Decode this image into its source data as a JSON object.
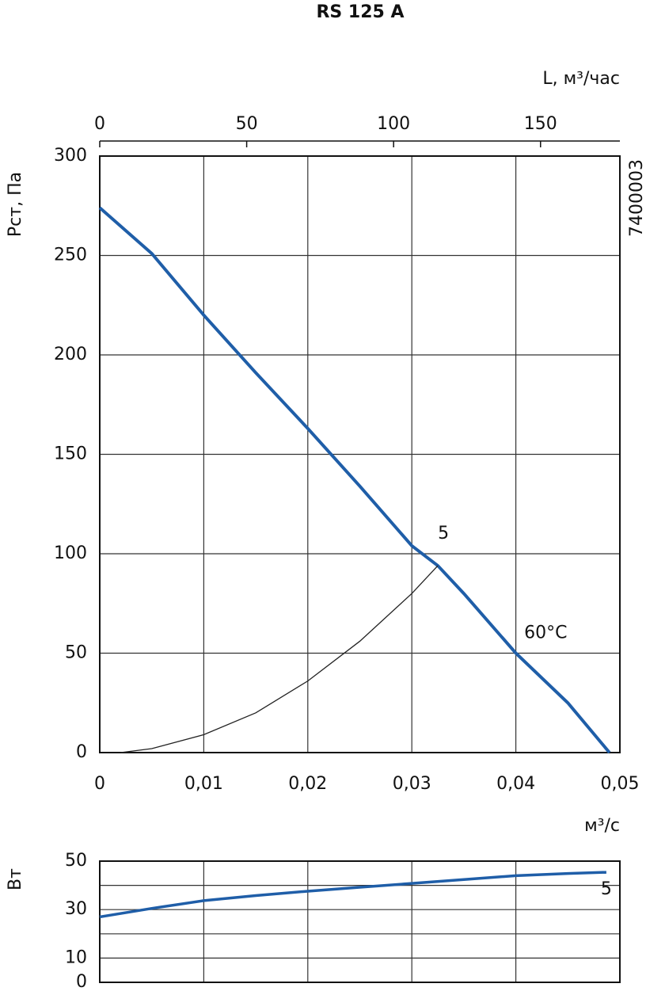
{
  "chart_data": [
    {
      "type": "line",
      "title": "RS 125 A",
      "side_code": "7400003",
      "ylabel": "Pст, Па",
      "xlabel": "м³/с",
      "x2label": "L, м³/час",
      "xlim": [
        0,
        0.05
      ],
      "xticks": [
        0,
        {
          "value": 0.01,
          "label": "0,01"
        },
        {
          "value": 0.02,
          "label": "0,02"
        },
        {
          "value": 0.03,
          "label": "0,03"
        },
        {
          "value": 0.04,
          "label": "0,04"
        },
        {
          "value": 0.05,
          "label": "0,05"
        }
      ],
      "x2lim": [
        0,
        177
      ],
      "x2ticks": [
        0,
        50,
        100,
        150
      ],
      "ylim": [
        0,
        300
      ],
      "yticks": [
        0,
        50,
        100,
        150,
        200,
        250,
        300
      ],
      "grid": true,
      "series": [
        {
          "color": "#1f5ea8",
          "width": 4,
          "x": [
            0,
            0.005,
            0.01,
            0.015,
            0.02,
            0.025,
            0.03,
            0.0325,
            0.035,
            0.04,
            0.045,
            0.049
          ],
          "values": [
            274,
            251,
            220,
            191,
            163,
            134,
            104,
            94,
            80,
            50,
            25,
            0
          ]
        },
        {
          "color": "#222222",
          "width": 1.3,
          "x": [
            0.002,
            0.005,
            0.01,
            0.015,
            0.02,
            0.025,
            0.03,
            0.0325
          ],
          "values": [
            0,
            2,
            9,
            20,
            36,
            56,
            80,
            94
          ]
        }
      ],
      "annotations": [
        {
          "text": "5",
          "x": 0.0322,
          "y": 106
        },
        {
          "text": "60°C",
          "x": 0.0405,
          "y": 56
        }
      ]
    },
    {
      "type": "line",
      "ylabel": "Вт",
      "xlim": [
        0,
        0.05
      ],
      "ylim": [
        0,
        50
      ],
      "yticks": [
        0,
        10,
        30,
        50
      ],
      "grid_values": [
        0,
        10,
        20,
        30,
        40,
        50
      ],
      "grid": true,
      "series": [
        {
          "color": "#1f5ea8",
          "width": 3.5,
          "label": "5",
          "x": [
            0,
            0.005,
            0.01,
            0.015,
            0.02,
            0.025,
            0.03,
            0.035,
            0.04,
            0.045,
            0.0487
          ],
          "values": [
            27,
            30.5,
            33.7,
            35.8,
            37.6,
            39.2,
            40.8,
            42.4,
            44,
            44.9,
            45.4
          ]
        }
      ]
    }
  ]
}
